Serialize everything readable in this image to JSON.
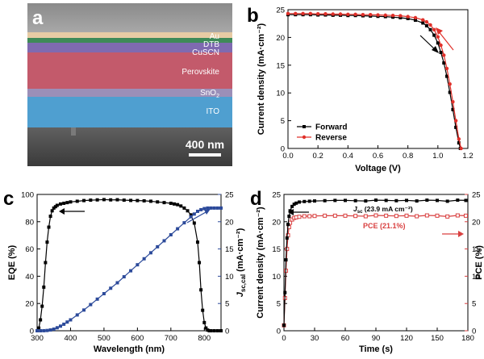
{
  "panel_labels": {
    "a": "a",
    "b": "b",
    "c": "c",
    "d": "d"
  },
  "sem": {
    "layers": [
      "Au",
      "DTB",
      "CuSCN",
      "Perovskite",
      "SnO2",
      "ITO"
    ],
    "sno2_text": "SnO",
    "sno2_sub": "2",
    "scale_bar": "400 nm"
  },
  "arrows": {
    "b": "arrow-icon",
    "c": "arrow-icon",
    "d": "arrow-icon"
  },
  "colors": {
    "forward": "#000000",
    "reverse": "#e0302a",
    "eqe": "#000000",
    "jsc_cal": "#2c4a9a",
    "jsc": "#000000",
    "pce": "#d94040"
  },
  "chart_data": [
    {
      "id": "b",
      "type": "line",
      "xlabel": "Voltage (V)",
      "ylabel": "Current density (mA·cm⁻²)",
      "xlim": [
        0.0,
        1.2
      ],
      "ylim": [
        0,
        25
      ],
      "xticks": [
        "0.0",
        "0.2",
        "0.4",
        "0.6",
        "0.8",
        "1.0",
        "1.2"
      ],
      "yticks": [
        "0",
        "5",
        "10",
        "15",
        "20",
        "25"
      ],
      "legend": [
        "Forward",
        "Reverse"
      ],
      "legend_position": "bottom-left",
      "series": [
        {
          "name": "Forward",
          "x": [
            0.0,
            0.05,
            0.1,
            0.15,
            0.2,
            0.25,
            0.3,
            0.35,
            0.4,
            0.45,
            0.5,
            0.55,
            0.6,
            0.65,
            0.7,
            0.75,
            0.8,
            0.85,
            0.9,
            0.925,
            0.95,
            0.975,
            1.0,
            1.02,
            1.04,
            1.06,
            1.08,
            1.1,
            1.12,
            1.14,
            1.15
          ],
          "y": [
            24.1,
            24.1,
            24.1,
            24.1,
            24.05,
            24.05,
            24.0,
            24.0,
            23.95,
            23.95,
            23.9,
            23.85,
            23.8,
            23.75,
            23.65,
            23.55,
            23.4,
            23.1,
            22.6,
            22.1,
            21.4,
            20.4,
            19.0,
            17.3,
            15.4,
            13.0,
            10.1,
            7.0,
            3.8,
            1.0,
            0.0
          ]
        },
        {
          "name": "Reverse",
          "x": [
            0.0,
            0.05,
            0.1,
            0.15,
            0.2,
            0.25,
            0.3,
            0.35,
            0.4,
            0.45,
            0.5,
            0.55,
            0.6,
            0.65,
            0.7,
            0.75,
            0.8,
            0.85,
            0.9,
            0.925,
            0.95,
            0.975,
            1.0,
            1.02,
            1.04,
            1.06,
            1.08,
            1.1,
            1.12,
            1.14,
            1.155
          ],
          "y": [
            24.3,
            24.3,
            24.3,
            24.3,
            24.25,
            24.25,
            24.2,
            24.2,
            24.15,
            24.15,
            24.1,
            24.1,
            24.05,
            24.0,
            23.95,
            23.9,
            23.75,
            23.55,
            23.15,
            22.8,
            22.25,
            21.4,
            20.1,
            18.6,
            16.8,
            14.4,
            11.6,
            8.4,
            5.0,
            1.7,
            0.0
          ]
        }
      ]
    },
    {
      "id": "c",
      "type": "line",
      "xlabel": "Wavelength (nm)",
      "ylabel": "EQE (%)",
      "y2label_main": "J",
      "y2label_sub": "sc,cal",
      "y2label_unit": " (mA·cm⁻²)",
      "xlim": [
        300,
        850
      ],
      "ylim": [
        0,
        100
      ],
      "y2lim": [
        0,
        25
      ],
      "xticks": [
        "300",
        "400",
        "500",
        "600",
        "700",
        "800"
      ],
      "yticks": [
        "0",
        "20",
        "40",
        "60",
        "80",
        "100"
      ],
      "y2ticks": [
        "0",
        "5",
        "10",
        "15",
        "20",
        "25"
      ],
      "series": [
        {
          "name": "EQE",
          "axis": "left",
          "x": [
            300,
            305,
            310,
            315,
            320,
            325,
            330,
            335,
            340,
            345,
            350,
            355,
            360,
            370,
            380,
            390,
            400,
            420,
            440,
            460,
            480,
            500,
            520,
            540,
            560,
            580,
            600,
            620,
            640,
            660,
            680,
            700,
            710,
            720,
            730,
            740,
            750,
            760,
            770,
            780,
            785,
            790,
            795,
            800,
            805,
            810,
            815,
            820,
            830,
            840,
            850
          ],
          "y": [
            0,
            2,
            8,
            18,
            32,
            50,
            65,
            76,
            84,
            88,
            90,
            91,
            92,
            93,
            93.5,
            94,
            94.5,
            95,
            95.5,
            95.8,
            96,
            96.2,
            96,
            96.1,
            95.8,
            95.6,
            95.5,
            95.3,
            95,
            94.5,
            94,
            93.5,
            93,
            92.5,
            91.5,
            90,
            88,
            85,
            79,
            65,
            50,
            30,
            15,
            6,
            2,
            0.5,
            0,
            0,
            0,
            0,
            0
          ]
        },
        {
          "name": "Jsc,cal",
          "axis": "right",
          "x": [
            300,
            310,
            320,
            330,
            340,
            350,
            360,
            370,
            380,
            390,
            400,
            420,
            440,
            460,
            480,
            500,
            520,
            540,
            560,
            580,
            600,
            620,
            640,
            660,
            680,
            700,
            720,
            740,
            760,
            770,
            780,
            790,
            800,
            810,
            820,
            830,
            840,
            850
          ],
          "y": [
            0,
            0,
            0.01,
            0.05,
            0.15,
            0.3,
            0.55,
            0.85,
            1.2,
            1.6,
            2.0,
            2.9,
            3.8,
            4.8,
            5.8,
            6.8,
            7.8,
            8.8,
            9.9,
            11.0,
            12.1,
            13.2,
            14.3,
            15.4,
            16.5,
            17.6,
            18.7,
            19.8,
            20.9,
            21.4,
            21.9,
            22.2,
            22.4,
            22.5,
            22.5,
            22.5,
            22.5,
            22.5
          ]
        }
      ]
    },
    {
      "id": "d",
      "type": "line",
      "xlabel": "Time (s)",
      "ylabel": "Current density (mA·cm⁻²)",
      "y2label": "PCE (%)",
      "xlim": [
        0,
        180
      ],
      "ylim": [
        0,
        25
      ],
      "y2lim": [
        0,
        25
      ],
      "xticks": [
        "0",
        "30",
        "60",
        "90",
        "120",
        "150",
        "180"
      ],
      "yticks": [
        "0",
        "5",
        "10",
        "15",
        "20",
        "25"
      ],
      "y2ticks": [
        "0",
        "5",
        "10",
        "15",
        "20",
        "25"
      ],
      "annotations": {
        "jsc_main": "J",
        "jsc_sub": "sc",
        "jsc_rest": " (23.9 mA cm⁻²)",
        "pce": "PCE (21.1%)"
      },
      "series": [
        {
          "name": "Jsc",
          "axis": "left",
          "x": [
            0,
            1,
            2,
            3,
            4,
            5,
            6,
            8,
            10,
            12,
            15,
            20,
            25,
            30,
            40,
            50,
            60,
            70,
            80,
            90,
            100,
            110,
            120,
            130,
            140,
            150,
            160,
            170,
            178
          ],
          "y": [
            1,
            7,
            13,
            17,
            19.5,
            21,
            22,
            22.8,
            23.2,
            23.4,
            23.6,
            23.7,
            23.75,
            23.8,
            23.85,
            23.9,
            23.9,
            23.85,
            23.8,
            23.95,
            23.9,
            23.85,
            23.9,
            23.8,
            23.95,
            23.9,
            23.75,
            23.95,
            23.9
          ]
        },
        {
          "name": "PCE",
          "axis": "right",
          "x": [
            0,
            1,
            2,
            3,
            4,
            5,
            6,
            8,
            10,
            12,
            15,
            20,
            25,
            30,
            40,
            50,
            60,
            70,
            80,
            90,
            100,
            110,
            120,
            130,
            140,
            150,
            160,
            170,
            178
          ],
          "y": [
            1,
            6,
            11,
            15,
            17.5,
            19,
            19.8,
            20.4,
            20.7,
            20.8,
            20.9,
            21.0,
            21.0,
            21.05,
            21.1,
            21.1,
            21.1,
            21.05,
            21.0,
            21.15,
            21.1,
            21.05,
            21.1,
            21.0,
            21.15,
            21.1,
            20.95,
            21.15,
            21.1
          ]
        }
      ]
    }
  ]
}
